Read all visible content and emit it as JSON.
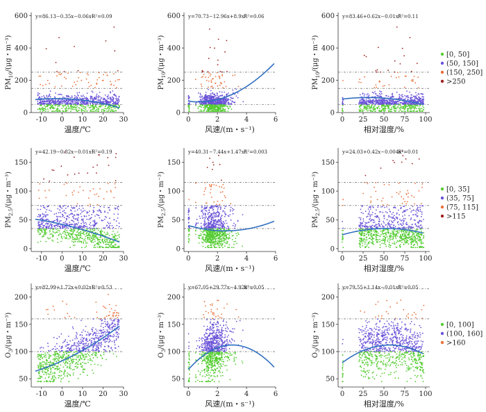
{
  "colors": {
    "green": "#55cc33",
    "purple": "#6a52d8",
    "orange": "#e8703a",
    "darkred": "#9c1f1f",
    "fit": "#2f6fc0"
  },
  "legends": [
    {
      "row": 0,
      "items": [
        {
          "label": "[0, 50]",
          "color": "#55cc33"
        },
        {
          "label": "(50, 150]",
          "color": "#6a52d8"
        },
        {
          "label": "(150, 250]",
          "color": "#e8703a"
        },
        {
          "label": ">250",
          "color": "#9c1f1f"
        }
      ]
    },
    {
      "row": 1,
      "items": [
        {
          "label": "[0, 35]",
          "color": "#55cc33"
        },
        {
          "label": "(35, 75]",
          "color": "#6a52d8"
        },
        {
          "label": "(75, 115]",
          "color": "#e8703a"
        },
        {
          "label": ">115",
          "color": "#9c1f1f"
        }
      ]
    },
    {
      "row": 2,
      "items": [
        {
          "label": "[0, 100]",
          "color": "#55cc33"
        },
        {
          "label": "(100, 160]",
          "color": "#6a52d8"
        },
        {
          "label": ">160",
          "color": "#e8703a"
        }
      ]
    }
  ],
  "chart_data": [
    {
      "type": "scatter",
      "row": 0,
      "col": 0,
      "xlabel": "温度/℃",
      "ylabel_main": "PM",
      "ylabel_sub": "10",
      "ylabel_rest": "/(μg・m⁻³)",
      "xlim": [
        -15,
        30
      ],
      "ylim": [
        0,
        620
      ],
      "xticks": [
        -10,
        0,
        10,
        20,
        30
      ],
      "yticks": [
        0,
        200,
        400,
        600
      ],
      "equation": "y=86.13−0.35x−0.06x²",
      "r2_label": "R²=0.09",
      "coef": [
        86.13,
        -0.35,
        -0.06
      ],
      "fit_range": [
        -13,
        28
      ],
      "thresholds": [
        50,
        150,
        250
      ],
      "bins": [
        50,
        150,
        250
      ]
    },
    {
      "type": "scatter",
      "row": 0,
      "col": 1,
      "xlabel": "风速/(m・s⁻¹)",
      "ylabel_main": "PM",
      "ylabel_sub": "10",
      "ylabel_rest": "/(μg・m⁻³)",
      "xlim": [
        -0.3,
        6
      ],
      "ylim": [
        0,
        620
      ],
      "xticks": [
        0,
        2,
        4,
        6
      ],
      "yticks": [
        0,
        200,
        400,
        600
      ],
      "equation": "y=70.73−12.96x+8.9x²",
      "r2_label": "R²=0.06",
      "coef": [
        70.73,
        -12.96,
        8.9
      ],
      "fit_range": [
        0,
        5.9
      ],
      "thresholds": [
        50,
        150,
        250
      ],
      "bins": [
        50,
        150,
        250
      ]
    },
    {
      "type": "scatter",
      "row": 0,
      "col": 2,
      "xlabel": "相对湿度/%",
      "ylabel_main": "PM",
      "ylabel_sub": "10",
      "ylabel_rest": "/(μg・m⁻³)",
      "xlim": [
        -5,
        105
      ],
      "ylim": [
        0,
        620
      ],
      "xticks": [
        0,
        25,
        50,
        75,
        100
      ],
      "yticks": [
        0,
        200,
        400,
        600
      ],
      "equation": "y=83.46+0.62x−0.01x²",
      "r2_label": "R²=0.11",
      "coef": [
        83.46,
        0.62,
        -0.01
      ],
      "fit_range": [
        0,
        97
      ],
      "thresholds": [
        50,
        150,
        250
      ],
      "bins": [
        50,
        150,
        250
      ]
    },
    {
      "type": "scatter",
      "row": 1,
      "col": 0,
      "xlabel": "温度/℃",
      "ylabel_main": "PM",
      "ylabel_sub": "2.5",
      "ylabel_rest": "/(μg・m⁻³)",
      "xlim": [
        -15,
        30
      ],
      "ylim": [
        -5,
        175
      ],
      "xticks": [
        -10,
        0,
        10,
        20,
        30
      ],
      "yticks": [
        0,
        50,
        100,
        150
      ],
      "equation": "y=42.19−0.82x−0.01x²",
      "r2_label": "R²=0.19",
      "coef": [
        42.19,
        -0.82,
        -0.01
      ],
      "fit_range": [
        -13,
        28
      ],
      "thresholds": [
        35,
        75,
        115
      ],
      "bins": [
        35,
        75,
        115
      ]
    },
    {
      "type": "scatter",
      "row": 1,
      "col": 1,
      "xlabel": "风速/(m・s⁻¹)",
      "ylabel_main": "PM",
      "ylabel_sub": "2.5",
      "ylabel_rest": "/(μg・m⁻³)",
      "xlim": [
        -0.3,
        6
      ],
      "ylim": [
        -5,
        175
      ],
      "xticks": [
        0,
        2,
        4,
        6
      ],
      "yticks": [
        0,
        50,
        100,
        150
      ],
      "equation": "y=40.31−7.44x+1.47x²",
      "r2_label": "R²=0.003",
      "coef": [
        40.31,
        -7.44,
        1.47
      ],
      "fit_range": [
        0,
        5.9
      ],
      "thresholds": [
        35,
        75,
        115
      ],
      "bins": [
        35,
        75,
        115
      ]
    },
    {
      "type": "scatter",
      "row": 1,
      "col": 2,
      "xlabel": "相对湿度/%",
      "ylabel_main": "PM",
      "ylabel_sub": "2.5",
      "ylabel_rest": "/(μg・m⁻³)",
      "xlim": [
        -5,
        105
      ],
      "ylim": [
        -5,
        175
      ],
      "xticks": [
        0,
        25,
        50,
        75,
        100
      ],
      "yticks": [
        0,
        50,
        100,
        150
      ],
      "equation": "y=24.03+0.42x−0.004x²",
      "r2_label": "R²=0.01",
      "coef": [
        24.03,
        0.42,
        -0.004
      ],
      "fit_range": [
        0,
        97
      ],
      "thresholds": [
        35,
        75,
        115
      ],
      "bins": [
        35,
        75,
        115
      ]
    },
    {
      "type": "scatter",
      "row": 2,
      "col": 0,
      "xlabel": "温度/℃",
      "ylabel_main": "O",
      "ylabel_sub": "3",
      "ylabel_rest": "/(μg・m⁻³)",
      "xlim": [
        -15,
        30
      ],
      "ylim": [
        35,
        225
      ],
      "xticks": [
        -10,
        0,
        10,
        20,
        30
      ],
      "yticks": [
        50,
        100,
        150,
        200
      ],
      "equation": "y=82.99+1.72x+0.02x²",
      "r2_label": "R²=0.53",
      "coef": [
        82.99,
        1.72,
        0.02
      ],
      "fit_range": [
        -13,
        28
      ],
      "thresholds": [
        100,
        160,
        215
      ],
      "bins": [
        100,
        160,
        9999
      ]
    },
    {
      "type": "scatter",
      "row": 2,
      "col": 1,
      "xlabel": "风速/(m・s⁻¹)",
      "ylabel_main": "O",
      "ylabel_sub": "3",
      "ylabel_rest": "/(μg・m⁻³)",
      "xlim": [
        -0.3,
        6
      ],
      "ylim": [
        35,
        225
      ],
      "xticks": [
        0,
        2,
        4,
        6
      ],
      "yticks": [
        50,
        100,
        150,
        200
      ],
      "equation": "y=67.05+29.77x−4.92x²",
      "r2_label": "R²=0.05",
      "coef": [
        67.05,
        29.77,
        -4.92
      ],
      "fit_range": [
        0,
        5.9
      ],
      "thresholds": [
        100,
        160,
        215
      ],
      "bins": [
        100,
        160,
        9999
      ]
    },
    {
      "type": "scatter",
      "row": 2,
      "col": 2,
      "xlabel": "相对湿度/%",
      "ylabel_main": "O",
      "ylabel_sub": "3",
      "ylabel_rest": "/(μg・m⁻³)",
      "xlim": [
        -5,
        105
      ],
      "ylim": [
        35,
        225
      ],
      "xticks": [
        0,
        25,
        50,
        75,
        100
      ],
      "yticks": [
        50,
        100,
        150,
        200
      ],
      "equation": "y=79.55+1.14x−0.01x²",
      "r2_label": "R²=0.05",
      "coef": [
        79.55,
        1.14,
        -0.01
      ],
      "fit_range": [
        0,
        97
      ],
      "thresholds": [
        100,
        160,
        215
      ],
      "bins": [
        100,
        160,
        9999
      ]
    }
  ]
}
